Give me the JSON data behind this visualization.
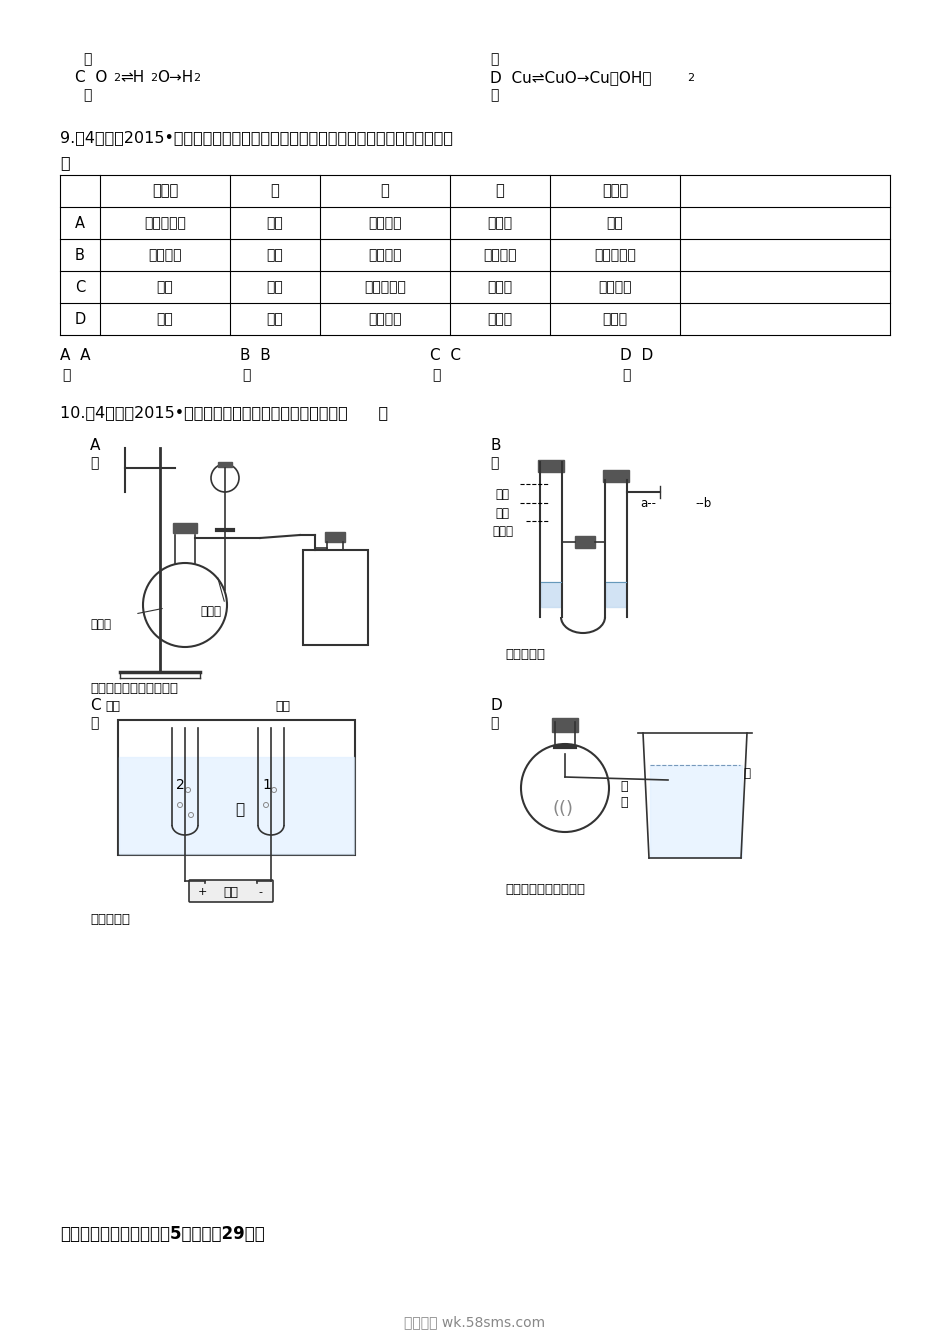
{
  "bg_color": "#ffffff",
  "text_color": "#000000",
  "page_width": 9.5,
  "page_height": 13.44,
  "q9": {
    "question": "9.（4分）（2015•大庆）下列关于混合物、酸、碱、盐、氧化物分类完全正确的是（",
    "headers": [
      "混合物",
      "酸",
      "碱",
      "盐",
      "氧化物"
    ],
    "rows": [
      [
        "A",
        "冰水混合物",
        "硫酸",
        "氢氧化钓",
        "硫酸钓",
        "干冰"
      ],
      [
        "B",
        "焦炉煮气",
        "皑酸",
        "氢氧化钓",
        "碳酸氢钓",
        "四氧化三铁"
      ],
      [
        "C",
        "合金",
        "盐酸",
        "碱式碳酸铜",
        "氯化銀",
        "一氧化碳"
      ],
      [
        "D",
        "空气",
        "醛酸",
        "氢氧化钓",
        "碳酸钓",
        "氯酸鐴"
      ]
    ],
    "options": [
      "A  A",
      "B  B",
      "C  C",
      "D  D"
    ]
  },
  "q10": {
    "question": "10.（4分）（2015•大庆）下列装置不能达到实验目的是（      ）"
  },
  "footer_section": "二、非选择题（本题包括5小题，共29分）",
  "watermark": "五八文库 wk.58sms.com"
}
